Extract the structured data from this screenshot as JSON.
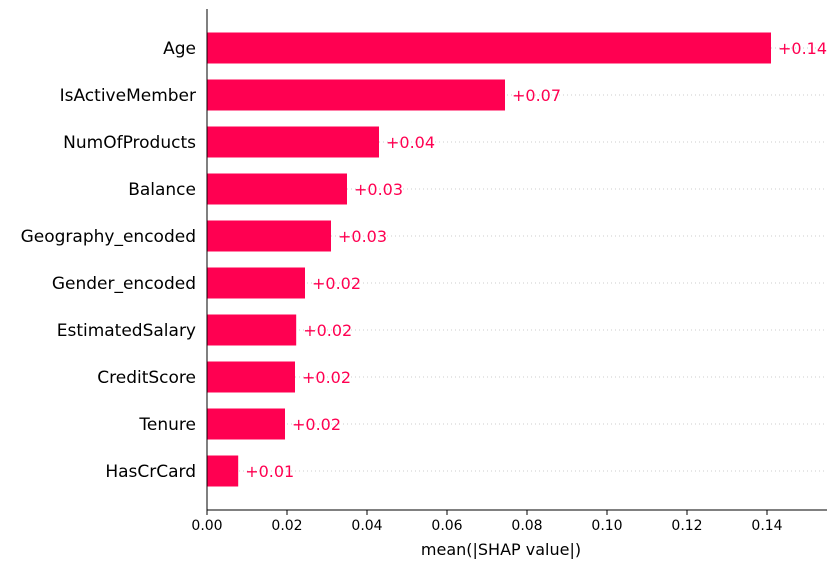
{
  "chart_data": {
    "type": "bar",
    "orientation": "horizontal",
    "categories": [
      "Age",
      "IsActiveMember",
      "NumOfProducts",
      "Balance",
      "Geography_encoded",
      "Gender_encoded",
      "EstimatedSalary",
      "CreditScore",
      "Tenure",
      "HasCrCard"
    ],
    "values": [
      0.141,
      0.0745,
      0.043,
      0.035,
      0.031,
      0.0245,
      0.0223,
      0.022,
      0.0195,
      0.0078
    ],
    "value_labels": [
      "+0.14",
      "+0.07",
      "+0.04",
      "+0.03",
      "+0.03",
      "+0.02",
      "+0.02",
      "+0.02",
      "+0.02",
      "+0.01"
    ],
    "xlabel": "mean(|SHAP value|)",
    "xlim": [
      0,
      0.155
    ],
    "xticks": [
      0.0,
      0.02,
      0.04,
      0.06,
      0.08,
      0.1,
      0.12,
      0.14
    ],
    "xtick_labels": [
      "0.00",
      "0.02",
      "0.04",
      "0.06",
      "0.08",
      "0.10",
      "0.12",
      "0.14"
    ],
    "grid": "dotted horizontal guide lines per feature",
    "colors": {
      "bar": "#ff0051",
      "value_label": "#ff0051",
      "grid": "#cccccc"
    }
  }
}
